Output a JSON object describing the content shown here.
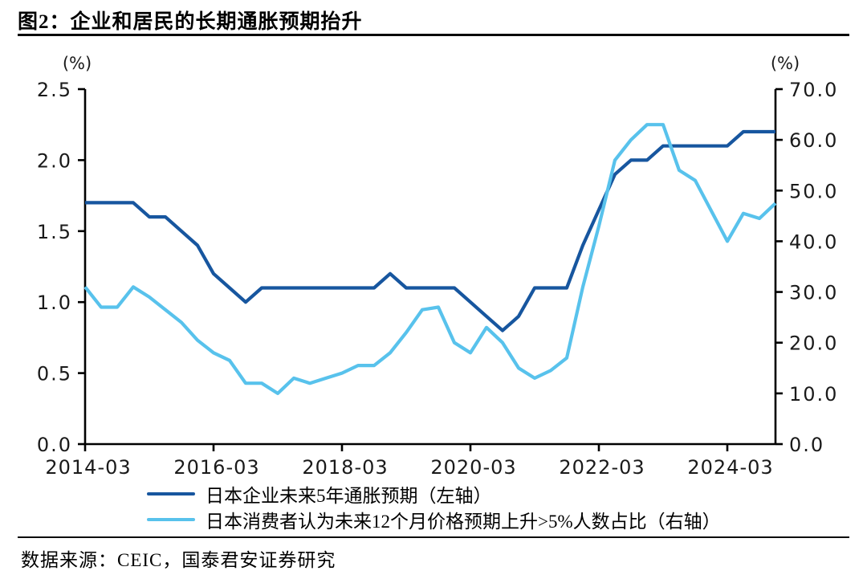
{
  "header": {
    "title": "图2：企业和居民的长期通胀预期抬升"
  },
  "footer": {
    "source": "数据来源：CEIC，国泰君安证券研究"
  },
  "chart_data": {
    "type": "line",
    "title": "图2：企业和居民的长期通胀预期抬升",
    "grid": false,
    "legend_position": "bottom",
    "x": [
      "2014-03",
      "2014-06",
      "2014-09",
      "2014-12",
      "2015-03",
      "2015-06",
      "2015-09",
      "2015-12",
      "2016-03",
      "2016-06",
      "2016-09",
      "2016-12",
      "2017-03",
      "2017-06",
      "2017-09",
      "2017-12",
      "2018-03",
      "2018-06",
      "2018-09",
      "2018-12",
      "2019-03",
      "2019-06",
      "2019-09",
      "2019-12",
      "2020-03",
      "2020-06",
      "2020-09",
      "2020-12",
      "2021-03",
      "2021-06",
      "2021-09",
      "2021-12",
      "2022-03",
      "2022-06",
      "2022-09",
      "2022-12",
      "2023-03",
      "2023-06",
      "2023-09",
      "2023-12",
      "2024-03",
      "2024-06",
      "2024-09",
      "2024-12"
    ],
    "x_tick_labels": [
      "2014-03",
      "2016-03",
      "2018-03",
      "2020-03",
      "2022-03",
      "2024-03"
    ],
    "x_tick_indices": [
      0,
      8,
      16,
      24,
      32,
      40
    ],
    "left_axis": {
      "unit": "(%)",
      "min": 0,
      "max": 2.5,
      "ticks": [
        "0.0",
        "0.5",
        "1.0",
        "1.5",
        "2.0",
        "2.5"
      ]
    },
    "right_axis": {
      "unit": "(%)",
      "min": 0,
      "max": 70,
      "ticks": [
        "0.0",
        "10.0",
        "20.0",
        "30.0",
        "40.0",
        "50.0",
        "60.0",
        "70.0"
      ]
    },
    "series": [
      {
        "name": "日本企业未来5年通胀预期（左轴）",
        "axis": "left",
        "color": "#17569f",
        "values": [
          1.7,
          1.7,
          1.7,
          1.7,
          1.6,
          1.6,
          1.5,
          1.4,
          1.2,
          1.1,
          1.0,
          1.1,
          1.1,
          1.1,
          1.1,
          1.1,
          1.1,
          1.1,
          1.1,
          1.2,
          1.1,
          1.1,
          1.1,
          1.1,
          1.0,
          0.9,
          0.8,
          0.9,
          1.1,
          1.1,
          1.1,
          1.4,
          1.65,
          1.9,
          2.0,
          2.0,
          2.1,
          2.1,
          2.1,
          2.1,
          2.1,
          2.2,
          2.2,
          2.2
        ]
      },
      {
        "name": "日本消费者认为未来12个月价格预期上升>5%人数占比（右轴）",
        "axis": "right",
        "color": "#58c2ec",
        "values": [
          31,
          27,
          27,
          31,
          29,
          26.5,
          24,
          20.5,
          18,
          16.5,
          12,
          12,
          10,
          13,
          12,
          13,
          14,
          15.5,
          15.5,
          18,
          22,
          26.5,
          27,
          20,
          18,
          23,
          20,
          15,
          13,
          14.5,
          17,
          31,
          43,
          56,
          60,
          63,
          63,
          54,
          52,
          46,
          40,
          45.5,
          44.5,
          47.5
        ]
      }
    ]
  }
}
